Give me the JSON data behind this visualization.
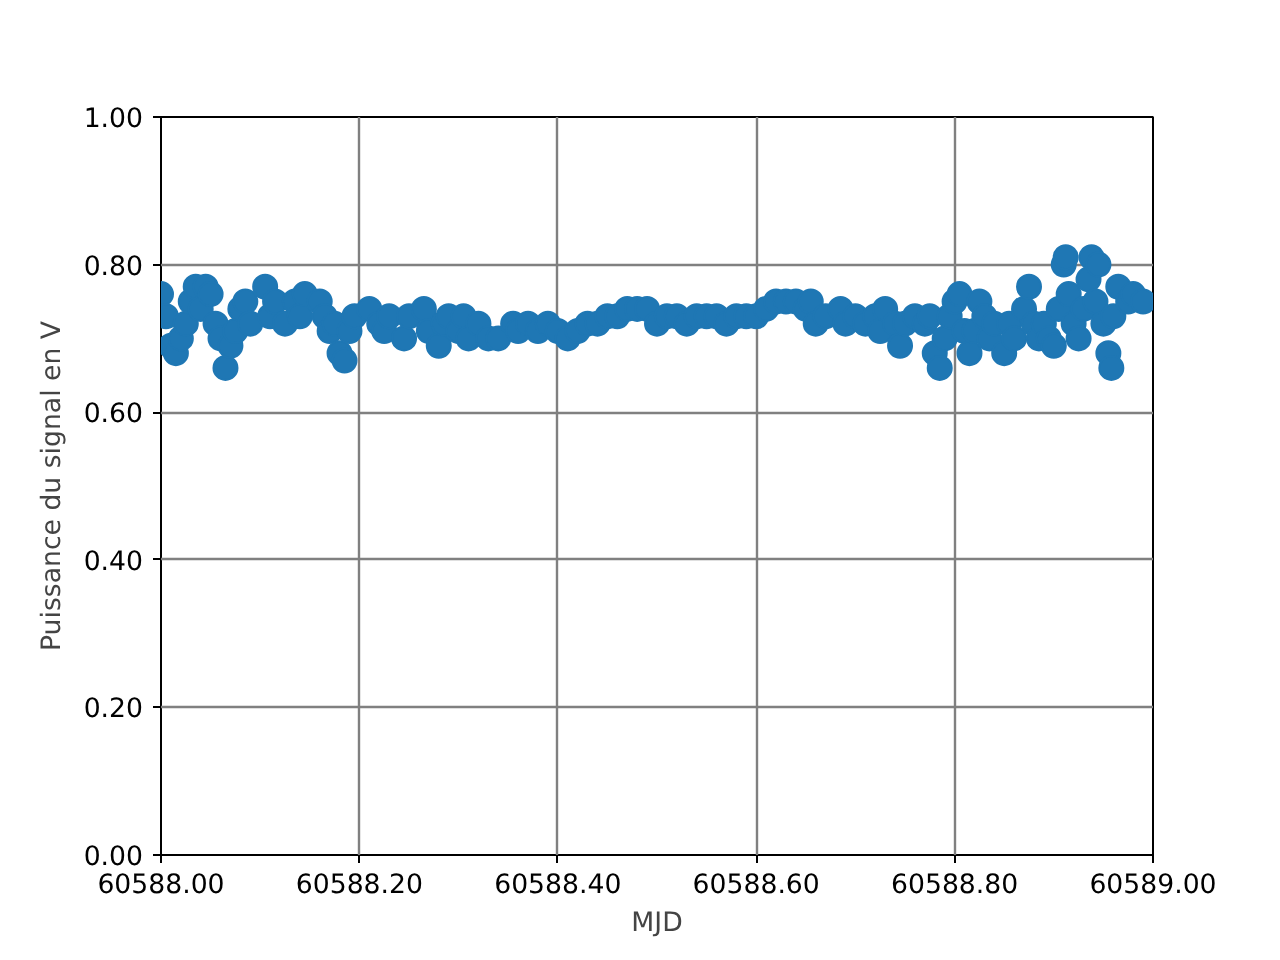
{
  "chart_data": {
    "type": "scatter",
    "xlabel": "MJD",
    "ylabel": "Puissance du signal en V",
    "x": [
      60588.0,
      60588.005,
      60588.01,
      60588.015,
      60588.02,
      60588.025,
      60588.03,
      60588.035,
      60588.04,
      60588.045,
      60588.05,
      60588.055,
      60588.06,
      60588.065,
      60588.07,
      60588.075,
      60588.08,
      60588.085,
      60588.09,
      60588.105,
      60588.11,
      60588.115,
      60588.125,
      60588.135,
      60588.14,
      60588.145,
      60588.16,
      60588.165,
      60588.17,
      60588.175,
      60588.18,
      60588.185,
      60588.19,
      60588.195,
      60588.21,
      60588.22,
      60588.225,
      60588.23,
      60588.245,
      60588.25,
      60588.265,
      60588.27,
      60588.28,
      60588.285,
      60588.29,
      60588.3,
      60588.305,
      60588.31,
      60588.32,
      60588.33,
      60588.34,
      60588.355,
      60588.36,
      60588.37,
      60588.38,
      60588.39,
      60588.4,
      60588.41,
      60588.42,
      60588.43,
      60588.44,
      60588.45,
      60588.46,
      60588.47,
      60588.48,
      60588.49,
      60588.5,
      60588.51,
      60588.52,
      60588.53,
      60588.54,
      60588.55,
      60588.56,
      60588.57,
      60588.58,
      60588.59,
      60588.6,
      60588.61,
      60588.62,
      60588.63,
      60588.64,
      60588.65,
      60588.655,
      60588.66,
      60588.67,
      60588.685,
      60588.69,
      60588.7,
      60588.71,
      60588.72,
      60588.725,
      60588.73,
      60588.74,
      60588.745,
      60588.75,
      60588.76,
      60588.77,
      60588.775,
      60588.78,
      60588.785,
      60588.79,
      60588.795,
      60588.8,
      60588.805,
      60588.81,
      60588.815,
      60588.82,
      60588.825,
      60588.83,
      60588.835,
      60588.84,
      60588.85,
      60588.855,
      60588.86,
      60588.87,
      60588.875,
      60588.88,
      60588.885,
      60588.89,
      60588.895,
      60588.9,
      60588.905,
      60588.91,
      60588.912,
      60588.915,
      60588.92,
      60588.925,
      60588.93,
      60588.935,
      60588.938,
      60588.942,
      60588.945,
      60588.95,
      60588.955,
      60588.958,
      60588.96,
      60588.965,
      60588.975,
      60588.98,
      60588.99
    ],
    "series": [
      {
        "color": "#1f77b4",
        "values": [
          0.76,
          0.73,
          0.69,
          0.68,
          0.7,
          0.72,
          0.75,
          0.77,
          0.74,
          0.77,
          0.76,
          0.72,
          0.7,
          0.66,
          0.69,
          0.71,
          0.74,
          0.75,
          0.72,
          0.77,
          0.73,
          0.75,
          0.72,
          0.75,
          0.73,
          0.76,
          0.75,
          0.73,
          0.71,
          0.72,
          0.68,
          0.67,
          0.71,
          0.73,
          0.74,
          0.72,
          0.71,
          0.73,
          0.7,
          0.73,
          0.74,
          0.71,
          0.69,
          0.72,
          0.73,
          0.71,
          0.73,
          0.7,
          0.72,
          0.7,
          0.7,
          0.72,
          0.71,
          0.72,
          0.71,
          0.72,
          0.71,
          0.7,
          0.71,
          0.72,
          0.72,
          0.73,
          0.73,
          0.74,
          0.74,
          0.74,
          0.72,
          0.73,
          0.73,
          0.72,
          0.73,
          0.73,
          0.73,
          0.72,
          0.73,
          0.73,
          0.73,
          0.74,
          0.75,
          0.75,
          0.75,
          0.74,
          0.75,
          0.72,
          0.73,
          0.74,
          0.72,
          0.73,
          0.72,
          0.73,
          0.71,
          0.74,
          0.72,
          0.69,
          0.72,
          0.73,
          0.72,
          0.73,
          0.68,
          0.66,
          0.7,
          0.73,
          0.75,
          0.76,
          0.71,
          0.68,
          0.71,
          0.75,
          0.73,
          0.7,
          0.72,
          0.68,
          0.72,
          0.7,
          0.74,
          0.77,
          0.72,
          0.7,
          0.72,
          0.7,
          0.69,
          0.74,
          0.8,
          0.81,
          0.76,
          0.72,
          0.7,
          0.74,
          0.78,
          0.81,
          0.75,
          0.8,
          0.72,
          0.68,
          0.66,
          0.73,
          0.77,
          0.75,
          0.76,
          0.75
        ]
      }
    ],
    "marker": "circle",
    "grid": true,
    "xlim": [
      60588.0,
      60589.0
    ],
    "xticks": [
      {
        "value": 60588.0,
        "label": "60588.00"
      },
      {
        "value": 60588.2,
        "label": "60588.20"
      },
      {
        "value": 60588.4,
        "label": "60588.40"
      },
      {
        "value": 60588.6,
        "label": "60588.60"
      },
      {
        "value": 60588.8,
        "label": "60588.80"
      },
      {
        "value": 60589.0,
        "label": "60589.00"
      }
    ],
    "ylim": [
      0.0,
      1.0
    ],
    "yticks": [
      {
        "value": 0.0,
        "label": "0.00"
      },
      {
        "value": 0.2,
        "label": "0.20"
      },
      {
        "value": 0.4,
        "label": "0.40"
      },
      {
        "value": 0.6,
        "label": "0.60"
      },
      {
        "value": 0.8,
        "label": "0.80"
      },
      {
        "value": 1.0,
        "label": "1.00"
      }
    ]
  }
}
